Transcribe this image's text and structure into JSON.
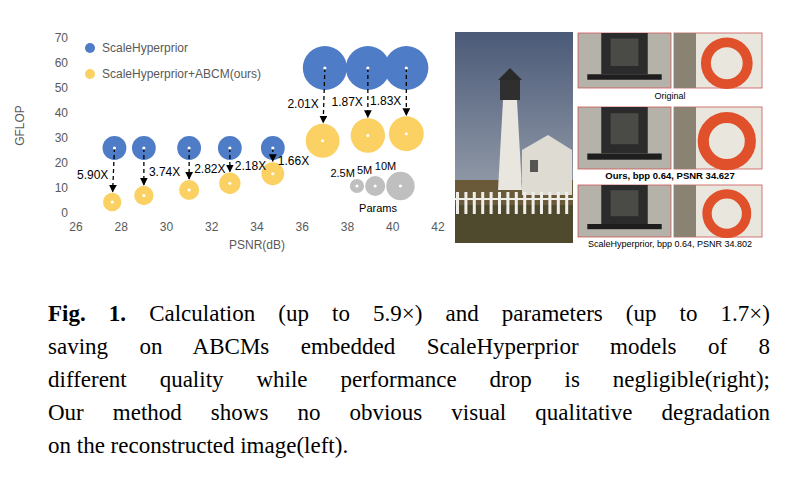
{
  "chart_data": {
    "type": "bubble",
    "x_label": "PSNR(dB)",
    "y_label": "GFLOP",
    "xlim": [
      26,
      42
    ],
    "xticks": [
      26,
      28,
      30,
      32,
      34,
      36,
      38,
      40,
      42
    ],
    "ylim": [
      0,
      70
    ],
    "yticks": [
      0,
      10,
      20,
      30,
      40,
      50,
      60,
      70
    ],
    "grid": false,
    "legend": "upper left",
    "series": [
      {
        "name": "ScaleHyperprior",
        "color": "#4f7cc6",
        "x": [
          27.7,
          29.0,
          31.0,
          32.8,
          34.7,
          37.0,
          38.9,
          40.6
        ],
        "values": [
          26,
          26,
          26,
          26,
          26,
          58,
          58,
          58
        ],
        "sizes": [
          7,
          7,
          7,
          7,
          7,
          24,
          24,
          24
        ]
      },
      {
        "name": "ScaleHyperprior+ABCM(ours)",
        "color": "#fbd164",
        "x": [
          27.6,
          29.0,
          31.0,
          32.8,
          34.7,
          36.9,
          38.9,
          40.6
        ],
        "values": [
          4.4,
          7.0,
          9.2,
          11.9,
          15.7,
          28.9,
          31.0,
          31.7
        ],
        "sizes": [
          4.2,
          4.6,
          5.0,
          5.6,
          6.4,
          14.2,
          14.6,
          15.0
        ]
      }
    ],
    "annotations": [
      "5.90X",
      "3.74X",
      "2.82X",
      "2.18X",
      "1.66X",
      "2.01X",
      "1.87X",
      "1.83X"
    ],
    "size_legend": {
      "title": "Params",
      "sizes": [
        2.5,
        5,
        10
      ],
      "labels": [
        "2.5M",
        "5M",
        "10M"
      ],
      "color": "#bfbfbf"
    }
  },
  "image_panel": {
    "labels": [
      "Original",
      "Ours, bpp 0.64, PSNR 34.627",
      "ScaleHyperprior, bpp 0.64, PSNR 34.802"
    ]
  },
  "caption": {
    "label": "Fig. 1.",
    "lines": [
      "Calculation (up to 5.9×) and parameters (up to 1.7×)",
      "saving on ABCMs embedded ScaleHyperprior models of 8",
      "different quality while performance drop is negligible(right);",
      "Our method shows no obvious visual qualitative degradation",
      "on the reconstructed image(left)."
    ]
  }
}
